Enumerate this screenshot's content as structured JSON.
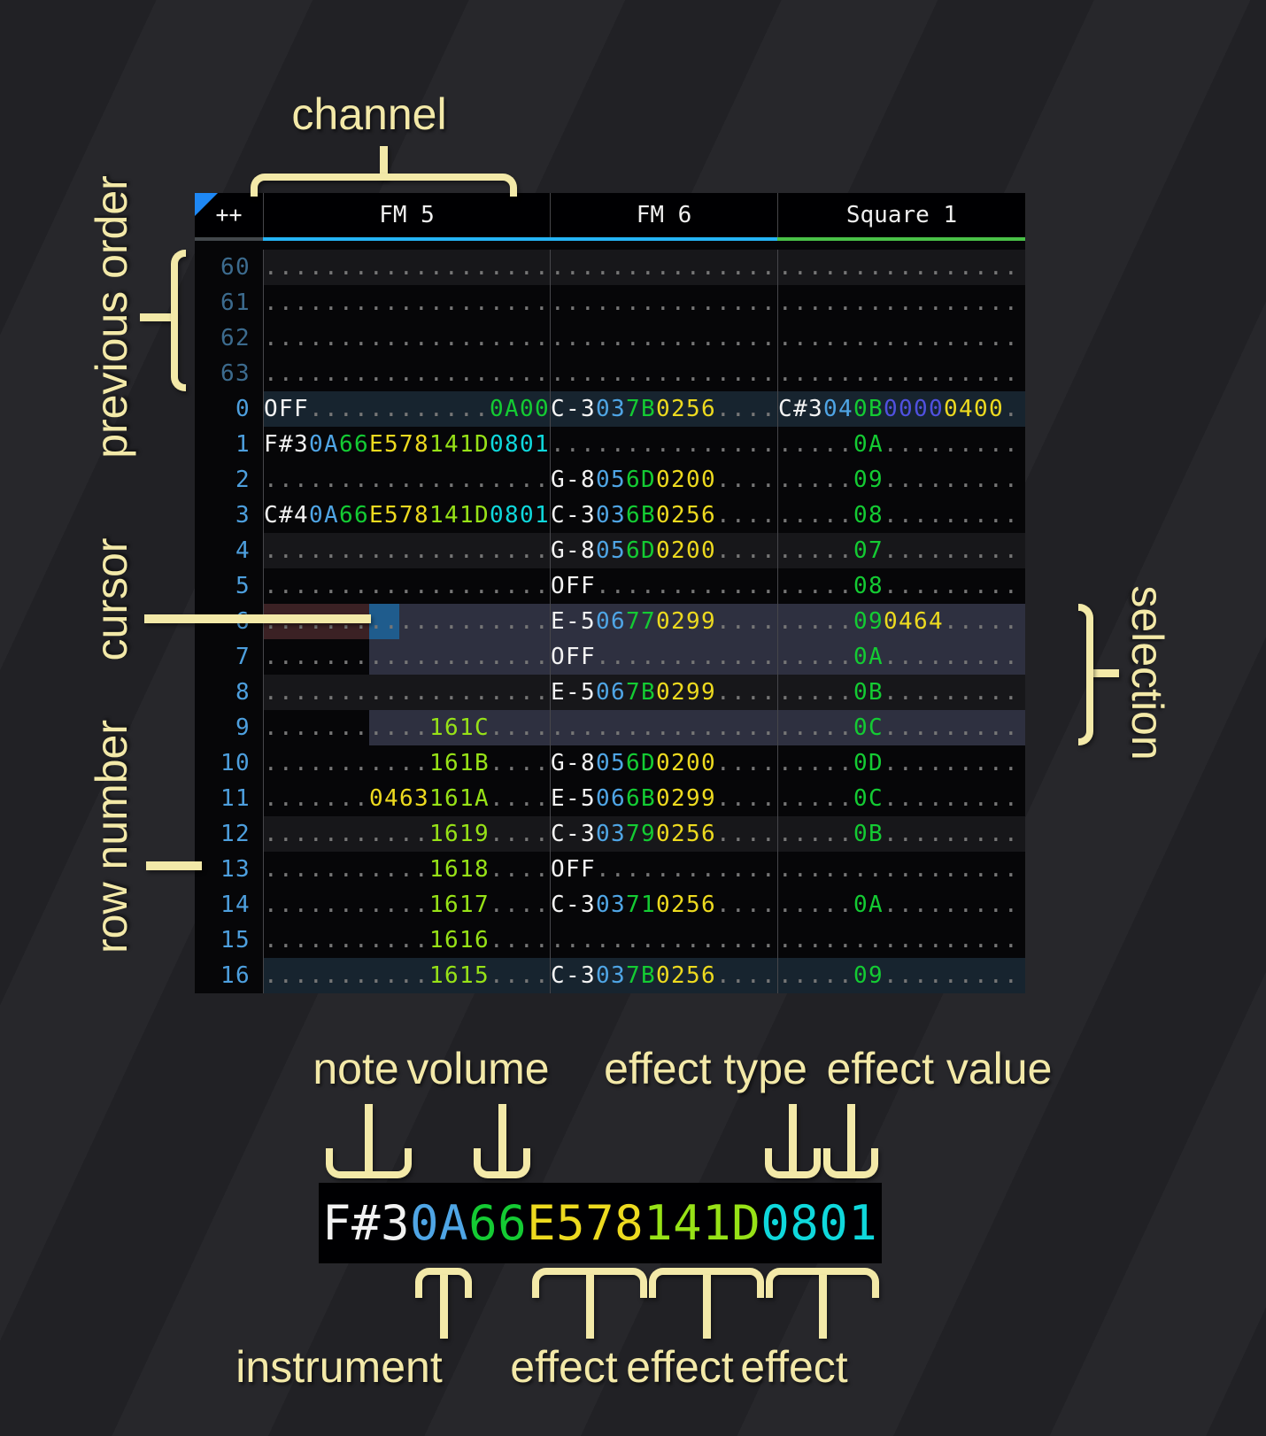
{
  "annotations": {
    "channel": "channel",
    "previous_order": "previous order",
    "cursor": "cursor",
    "row_number": "row number",
    "selection": "selection",
    "note": "note",
    "volume": "volume",
    "effect_type": "effect type",
    "effect_value": "effect value",
    "instrument": "instrument",
    "effect1": "effect",
    "effect2": "effect",
    "effect3": "effect"
  },
  "colors": {
    "note": "#f2f2f2",
    "instrument": "#4fa5e5",
    "volume": "#14cb33",
    "fx_yellow": "#edda1f",
    "fx_yellowgreen": "#97e217",
    "fx_cyan": "#0fd8dc",
    "fx_purple": "#4f51e0",
    "fx_green": "#14cb33",
    "empty_dots": "#767676",
    "row_number": "#4d9fde",
    "prev_row_number": "#3c6b8e",
    "selection_bg": "#2e3040",
    "cursor_bg": "#1f5c8d",
    "cursor_row_bg": "#3b2124",
    "fm_channel_underline": "#25b4f5",
    "square_channel_underline": "#49c147",
    "corner_triangle": "#1e88f5",
    "annotation_text": "#f3e9a8"
  },
  "tracker": {
    "corner_label": "++",
    "channels": [
      {
        "name": "FM 5",
        "subcols": [
          3,
          2,
          2,
          4,
          4,
          4
        ]
      },
      {
        "name": "FM 6",
        "subcols": [
          3,
          2,
          2,
          4,
          4
        ]
      },
      {
        "name": "Square 1",
        "subcols": [
          3,
          2,
          2,
          4,
          4,
          1
        ]
      }
    ],
    "rows": [
      {
        "n": "60",
        "prev": true,
        "hl": "h4",
        "cells": [
          [
            null,
            null,
            null,
            null,
            null,
            null
          ],
          [
            null,
            null,
            null,
            null,
            null
          ],
          [
            null,
            null,
            null,
            null,
            null,
            null
          ]
        ]
      },
      {
        "n": "61",
        "prev": true,
        "cells": [
          [
            null,
            null,
            null,
            null,
            null,
            null
          ],
          [
            null,
            null,
            null,
            null,
            null
          ],
          [
            null,
            null,
            null,
            null,
            null,
            null
          ]
        ]
      },
      {
        "n": "62",
        "prev": true,
        "cells": [
          [
            null,
            null,
            null,
            null,
            null,
            null
          ],
          [
            null,
            null,
            null,
            null,
            null
          ],
          [
            null,
            null,
            null,
            null,
            null,
            null
          ]
        ]
      },
      {
        "n": "63",
        "prev": true,
        "cells": [
          [
            null,
            null,
            null,
            null,
            null,
            null
          ],
          [
            null,
            null,
            null,
            null,
            null
          ],
          [
            null,
            null,
            null,
            null,
            null,
            null
          ]
        ]
      },
      {
        "n": "0",
        "hl": "h16",
        "cells": [
          [
            [
              "OFF",
              "note"
            ],
            null,
            null,
            null,
            null,
            [
              "0A00",
              "fxg"
            ]
          ],
          [
            [
              "C-3",
              "note"
            ],
            [
              "03",
              "ins"
            ],
            [
              "7B",
              "vol"
            ],
            [
              "0256",
              "fxy"
            ],
            null
          ],
          [
            [
              "C#3",
              "note"
            ],
            [
              "04",
              "ins"
            ],
            [
              "0B",
              "vol"
            ],
            [
              "0000",
              "fxp"
            ],
            [
              "0400",
              "fxy"
            ],
            null
          ]
        ]
      },
      {
        "n": "1",
        "cells": [
          [
            [
              "F#3",
              "note"
            ],
            [
              "0A",
              "ins"
            ],
            [
              "66",
              "vol"
            ],
            [
              "E578",
              "fxy"
            ],
            [
              "141D",
              "fxyg"
            ],
            [
              "0801",
              "fxc"
            ]
          ],
          [
            null,
            null,
            null,
            null,
            null
          ],
          [
            null,
            null,
            [
              "0A",
              "vol"
            ],
            null,
            null,
            null
          ]
        ]
      },
      {
        "n": "2",
        "cells": [
          [
            null,
            null,
            null,
            null,
            null,
            null
          ],
          [
            [
              "G-8",
              "note"
            ],
            [
              "05",
              "ins"
            ],
            [
              "6D",
              "vol"
            ],
            [
              "0200",
              "fxy"
            ],
            null
          ],
          [
            null,
            null,
            [
              "09",
              "vol"
            ],
            null,
            null,
            null
          ]
        ]
      },
      {
        "n": "3",
        "cells": [
          [
            [
              "C#4",
              "note"
            ],
            [
              "0A",
              "ins"
            ],
            [
              "66",
              "vol"
            ],
            [
              "E578",
              "fxy"
            ],
            [
              "141D",
              "fxyg"
            ],
            [
              "0801",
              "fxc"
            ]
          ],
          [
            [
              "C-3",
              "note"
            ],
            [
              "03",
              "ins"
            ],
            [
              "6B",
              "vol"
            ],
            [
              "0256",
              "fxy"
            ],
            null
          ],
          [
            null,
            null,
            [
              "08",
              "vol"
            ],
            null,
            null,
            null
          ]
        ]
      },
      {
        "n": "4",
        "hl": "h4",
        "cells": [
          [
            null,
            null,
            null,
            null,
            null,
            null
          ],
          [
            [
              "G-8",
              "note"
            ],
            [
              "05",
              "ins"
            ],
            [
              "6D",
              "vol"
            ],
            [
              "0200",
              "fxy"
            ],
            null
          ],
          [
            null,
            null,
            [
              "07",
              "vol"
            ],
            null,
            null,
            null
          ]
        ]
      },
      {
        "n": "5",
        "cells": [
          [
            null,
            null,
            null,
            null,
            null,
            null
          ],
          [
            [
              "OFF",
              "note"
            ],
            null,
            null,
            null,
            null
          ],
          [
            null,
            null,
            [
              "08",
              "vol"
            ],
            null,
            null,
            null
          ]
        ]
      },
      {
        "n": "6",
        "cursor": true,
        "cells": [
          [
            null,
            null,
            null,
            null,
            null,
            null
          ],
          [
            [
              "E-5",
              "note"
            ],
            [
              "06",
              "ins"
            ],
            [
              "77",
              "vol"
            ],
            [
              "0299",
              "fxy"
            ],
            null
          ],
          [
            null,
            null,
            [
              "09",
              "vol"
            ],
            [
              "0464",
              "fxy"
            ],
            null,
            null
          ]
        ]
      },
      {
        "n": "7",
        "cells": [
          [
            null,
            null,
            null,
            null,
            null,
            null
          ],
          [
            [
              "OFF",
              "note"
            ],
            null,
            null,
            null,
            null
          ],
          [
            null,
            null,
            [
              "0A",
              "vol"
            ],
            null,
            null,
            null
          ]
        ]
      },
      {
        "n": "8",
        "hl": "h4",
        "cells": [
          [
            null,
            null,
            null,
            null,
            null,
            null
          ],
          [
            [
              "E-5",
              "note"
            ],
            [
              "06",
              "ins"
            ],
            [
              "7B",
              "vol"
            ],
            [
              "0299",
              "fxy"
            ],
            null
          ],
          [
            null,
            null,
            [
              "0B",
              "vol"
            ],
            null,
            null,
            null
          ]
        ]
      },
      {
        "n": "9",
        "cells": [
          [
            null,
            null,
            null,
            null,
            [
              "161C",
              "fxyg"
            ],
            null
          ],
          [
            null,
            null,
            null,
            null,
            null
          ],
          [
            null,
            null,
            [
              "0C",
              "vol"
            ],
            null,
            null,
            null
          ]
        ]
      },
      {
        "n": "10",
        "cells": [
          [
            null,
            null,
            null,
            null,
            [
              "161B",
              "fxyg"
            ],
            null
          ],
          [
            [
              "G-8",
              "note"
            ],
            [
              "05",
              "ins"
            ],
            [
              "6D",
              "vol"
            ],
            [
              "0200",
              "fxy"
            ],
            null
          ],
          [
            null,
            null,
            [
              "0D",
              "vol"
            ],
            null,
            null,
            null
          ]
        ]
      },
      {
        "n": "11",
        "cells": [
          [
            null,
            null,
            null,
            [
              "0463",
              "fxy"
            ],
            [
              "161A",
              "fxyg"
            ],
            null
          ],
          [
            [
              "E-5",
              "note"
            ],
            [
              "06",
              "ins"
            ],
            [
              "6B",
              "vol"
            ],
            [
              "0299",
              "fxy"
            ],
            null
          ],
          [
            null,
            null,
            [
              "0C",
              "vol"
            ],
            null,
            null,
            null
          ]
        ]
      },
      {
        "n": "12",
        "hl": "h4",
        "cells": [
          [
            null,
            null,
            null,
            null,
            [
              "1619",
              "fxyg"
            ],
            null
          ],
          [
            [
              "C-3",
              "note"
            ],
            [
              "03",
              "ins"
            ],
            [
              "79",
              "vol"
            ],
            [
              "0256",
              "fxy"
            ],
            null
          ],
          [
            null,
            null,
            [
              "0B",
              "vol"
            ],
            null,
            null,
            null
          ]
        ]
      },
      {
        "n": "13",
        "cells": [
          [
            null,
            null,
            null,
            null,
            [
              "1618",
              "fxyg"
            ],
            null
          ],
          [
            [
              "OFF",
              "note"
            ],
            null,
            null,
            null,
            null
          ],
          [
            null,
            null,
            null,
            null,
            null,
            null
          ]
        ]
      },
      {
        "n": "14",
        "cells": [
          [
            null,
            null,
            null,
            null,
            [
              "1617",
              "fxyg"
            ],
            null
          ],
          [
            [
              "C-3",
              "note"
            ],
            [
              "03",
              "ins"
            ],
            [
              "71",
              "vol"
            ],
            [
              "0256",
              "fxy"
            ],
            null
          ],
          [
            null,
            null,
            [
              "0A",
              "vol"
            ],
            null,
            null,
            null
          ]
        ]
      },
      {
        "n": "15",
        "cells": [
          [
            null,
            null,
            null,
            null,
            [
              "1616",
              "fxyg"
            ],
            null
          ],
          [
            null,
            null,
            null,
            null,
            null
          ],
          [
            null,
            null,
            null,
            null,
            null,
            null
          ]
        ]
      },
      {
        "n": "16",
        "hl": "h16",
        "cells": [
          [
            null,
            null,
            null,
            null,
            [
              "1615",
              "fxyg"
            ],
            null
          ],
          [
            [
              "C-3",
              "note"
            ],
            [
              "03",
              "ins"
            ],
            [
              "7B",
              "vol"
            ],
            [
              "0256",
              "fxy"
            ],
            null
          ],
          [
            null,
            null,
            [
              "09",
              "vol"
            ],
            null,
            null,
            null
          ]
        ]
      }
    ]
  },
  "breakdown": {
    "segments": [
      [
        "F#3",
        "note"
      ],
      [
        "0A",
        "ins"
      ],
      [
        "66",
        "vol"
      ],
      [
        "E578",
        "fxy"
      ],
      [
        "141D",
        "fxyg"
      ],
      [
        "0801",
        "fxc"
      ]
    ]
  }
}
